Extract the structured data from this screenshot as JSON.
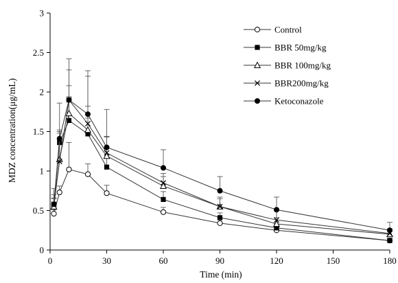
{
  "chart_data": {
    "type": "line",
    "title": "",
    "xlabel": "Time (min)",
    "ylabel": "MDZ  concentration(μg/mL)",
    "xlim": [
      0,
      180
    ],
    "ylim": [
      0,
      3
    ],
    "xticks": [
      0,
      30,
      60,
      90,
      120,
      150,
      180
    ],
    "yticks": [
      0,
      0.5,
      1,
      1.5,
      2,
      2.5,
      3
    ],
    "ytick_labels": [
      "0",
      "0.5",
      "1",
      "1.5",
      "2",
      "2.5",
      "3"
    ],
    "grid": false,
    "legend_position": "top-right",
    "error_bars": "upper",
    "x": [
      2,
      5,
      10,
      20,
      30,
      60,
      90,
      120,
      180
    ],
    "series": [
      {
        "name": "Control",
        "marker": "open-circle",
        "values": [
          0.46,
          0.73,
          1.02,
          0.96,
          0.72,
          0.48,
          0.34,
          0.25,
          0.12
        ],
        "errors": [
          0.05,
          0.08,
          0.34,
          0.13,
          0.1,
          0.06,
          0.05,
          0.04,
          0.03
        ]
      },
      {
        "name": "BBR 50mg/kg",
        "marker": "filled-square",
        "values": [
          0.56,
          1.36,
          1.64,
          1.47,
          1.05,
          0.64,
          0.41,
          0.28,
          0.12
        ],
        "errors": [
          0.1,
          0.12,
          0.3,
          0.2,
          0.15,
          0.1,
          0.06,
          0.05,
          0.03
        ]
      },
      {
        "name": "BBR 100mg/kg",
        "marker": "open-triangle",
        "values": [
          0.55,
          1.15,
          1.73,
          1.52,
          1.19,
          0.81,
          0.55,
          0.33,
          0.2
        ],
        "errors": [
          0.1,
          0.35,
          0.35,
          0.3,
          0.25,
          0.12,
          0.1,
          0.08,
          0.04
        ]
      },
      {
        "name": "BBR200mg/kg",
        "marker": "x",
        "values": [
          0.58,
          1.12,
          1.9,
          1.6,
          1.23,
          0.85,
          0.55,
          0.38,
          0.21
        ],
        "errors": [
          0.12,
          0.4,
          0.38,
          0.6,
          0.2,
          0.12,
          0.12,
          0.12,
          0.06
        ]
      },
      {
        "name": "Ketoconazole",
        "marker": "filled-circle",
        "values": [
          0.58,
          1.41,
          1.9,
          1.72,
          1.3,
          1.04,
          0.75,
          0.51,
          0.25
        ],
        "errors": [
          0.2,
          0.45,
          0.52,
          0.55,
          0.48,
          0.23,
          0.18,
          0.16,
          0.1
        ]
      }
    ]
  }
}
